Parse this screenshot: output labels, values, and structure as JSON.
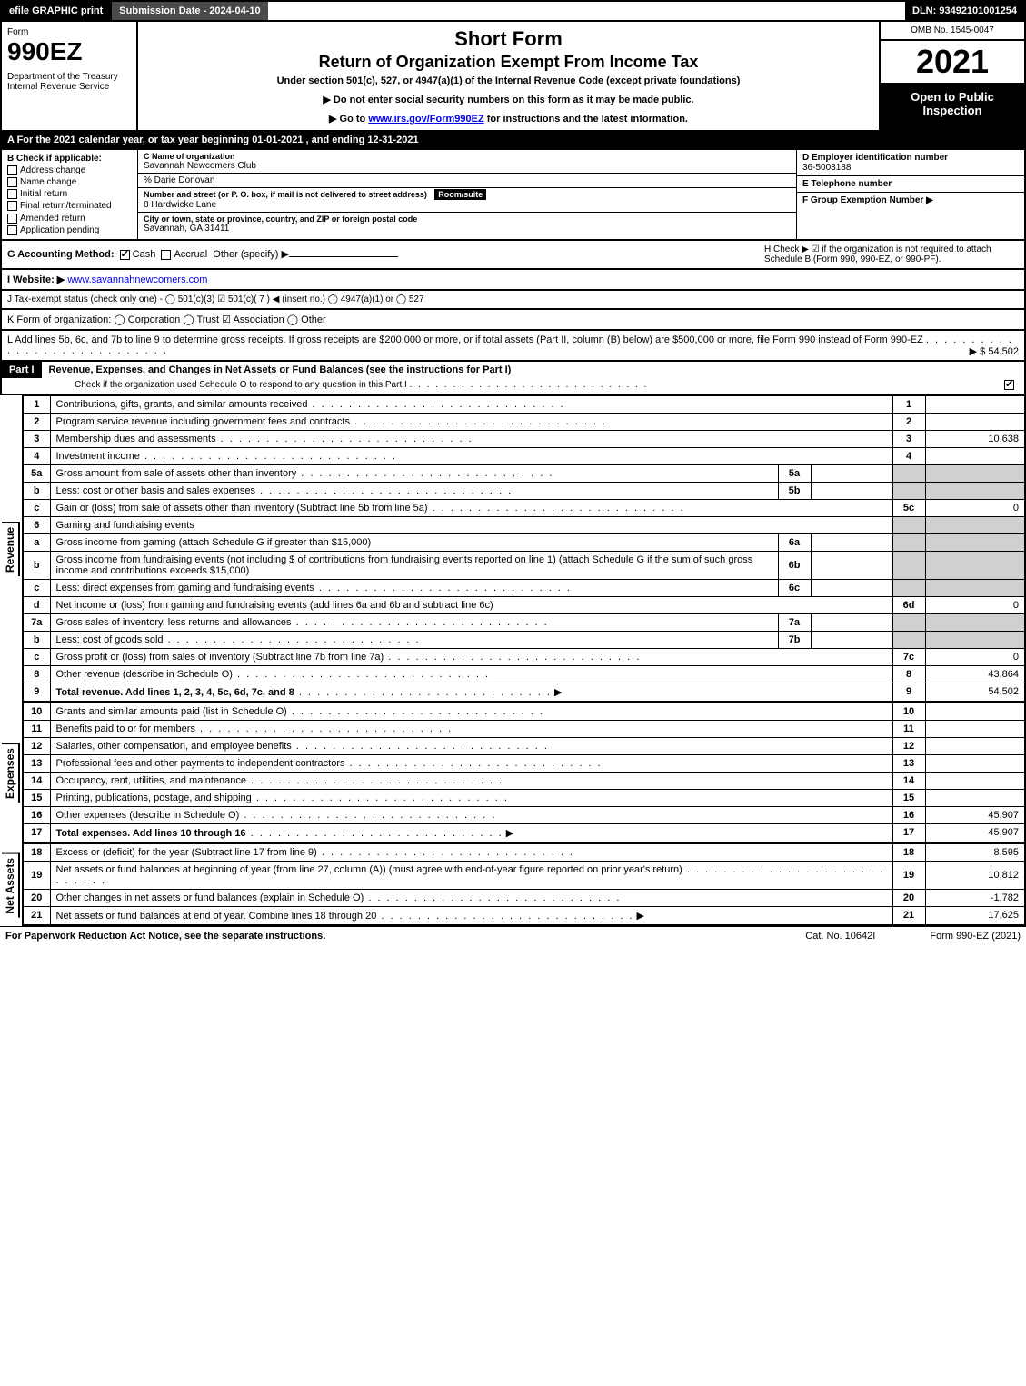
{
  "topbar": {
    "efile": "efile GRAPHIC print",
    "subdate_label": "Submission Date - 2024-04-10",
    "dln": "DLN: 93492101001254"
  },
  "header": {
    "form_word": "Form",
    "form_num": "990EZ",
    "dept": "Department of the Treasury\nInternal Revenue Service",
    "title1": "Short Form",
    "title2": "Return of Organization Exempt From Income Tax",
    "subtitle": "Under section 501(c), 527, or 4947(a)(1) of the Internal Revenue Code (except private foundations)",
    "note1": "▶ Do not enter social security numbers on this form as it may be made public.",
    "note2_pre": "▶ Go to ",
    "note2_link": "www.irs.gov/Form990EZ",
    "note2_post": " for instructions and the latest information.",
    "omb": "OMB No. 1545-0047",
    "year": "2021",
    "open": "Open to Public Inspection"
  },
  "rowA": "A  For the 2021 calendar year, or tax year beginning 01-01-2021 , and ending 12-31-2021",
  "B": {
    "hdr": "B  Check if applicable:",
    "opts": [
      "Address change",
      "Name change",
      "Initial return",
      "Final return/terminated",
      "Amended return",
      "Application pending"
    ]
  },
  "C": {
    "name_lbl": "C Name of organization",
    "name": "Savannah Newcomers Club",
    "care": "% Darie Donovan",
    "street_lbl": "Number and street (or P. O. box, if mail is not delivered to street address)",
    "room_lbl": "Room/suite",
    "street": "8 Hardwicke Lane",
    "city_lbl": "City or town, state or province, country, and ZIP or foreign postal code",
    "city": "Savannah, GA  31411"
  },
  "D": {
    "ein_lbl": "D Employer identification number",
    "ein": "36-5003188",
    "tel_lbl": "E Telephone number",
    "tel": "",
    "grp_lbl": "F Group Exemption Number  ▶",
    "grp": ""
  },
  "G": {
    "lbl": "G Accounting Method:",
    "cash": "Cash",
    "accrual": "Accrual",
    "other": "Other (specify) ▶"
  },
  "H": {
    "text": "H  Check ▶  ☑  if the organization is not required to attach Schedule B (Form 990, 990-EZ, or 990-PF)."
  },
  "I": {
    "lbl": "I Website: ▶",
    "val": "www.savannahnewcomers.com"
  },
  "J": {
    "text": "J Tax-exempt status (check only one) -  ◯ 501(c)(3)  ☑ 501(c)( 7 ) ◀ (insert no.)  ◯ 4947(a)(1) or  ◯ 527"
  },
  "K": {
    "text": "K Form of organization:   ◯ Corporation   ◯ Trust   ☑ Association   ◯ Other"
  },
  "L": {
    "text": "L Add lines 5b, 6c, and 7b to line 9 to determine gross receipts. If gross receipts are $200,000 or more, or if total assets (Part II, column (B) below) are $500,000 or more, file Form 990 instead of Form 990-EZ",
    "amt": "▶ $ 54,502"
  },
  "partI": {
    "bar": "Part I",
    "title": "Revenue, Expenses, and Changes in Net Assets or Fund Balances (see the instructions for Part I)",
    "sub": "Check if the organization used Schedule O to respond to any question in this Part I",
    "sub_checked": true
  },
  "sections": {
    "revenue": "Revenue",
    "expenses": "Expenses",
    "netassets": "Net Assets"
  },
  "lines": {
    "l1": {
      "n": "1",
      "t": "Contributions, gifts, grants, and similar amounts received",
      "r": "1",
      "a": ""
    },
    "l2": {
      "n": "2",
      "t": "Program service revenue including government fees and contracts",
      "r": "2",
      "a": ""
    },
    "l3": {
      "n": "3",
      "t": "Membership dues and assessments",
      "r": "3",
      "a": "10,638"
    },
    "l4": {
      "n": "4",
      "t": "Investment income",
      "r": "4",
      "a": ""
    },
    "l5a": {
      "n": "5a",
      "t": "Gross amount from sale of assets other than inventory",
      "s": "5a",
      "sv": ""
    },
    "l5b": {
      "n": "b",
      "t": "Less: cost or other basis and sales expenses",
      "s": "5b",
      "sv": ""
    },
    "l5c": {
      "n": "c",
      "t": "Gain or (loss) from sale of assets other than inventory (Subtract line 5b from line 5a)",
      "r": "5c",
      "a": "0"
    },
    "l6": {
      "n": "6",
      "t": "Gaming and fundraising events"
    },
    "l6a": {
      "n": "a",
      "t": "Gross income from gaming (attach Schedule G if greater than $15,000)",
      "s": "6a",
      "sv": ""
    },
    "l6b": {
      "n": "b",
      "t": "Gross income from fundraising events (not including $                      of contributions from fundraising events reported on line 1) (attach Schedule G if the sum of such gross income and contributions exceeds $15,000)",
      "s": "6b",
      "sv": ""
    },
    "l6c": {
      "n": "c",
      "t": "Less: direct expenses from gaming and fundraising events",
      "s": "6c",
      "sv": ""
    },
    "l6d": {
      "n": "d",
      "t": "Net income or (loss) from gaming and fundraising events (add lines 6a and 6b and subtract line 6c)",
      "r": "6d",
      "a": "0"
    },
    "l7a": {
      "n": "7a",
      "t": "Gross sales of inventory, less returns and allowances",
      "s": "7a",
      "sv": ""
    },
    "l7b": {
      "n": "b",
      "t": "Less: cost of goods sold",
      "s": "7b",
      "sv": ""
    },
    "l7c": {
      "n": "c",
      "t": "Gross profit or (loss) from sales of inventory (Subtract line 7b from line 7a)",
      "r": "7c",
      "a": "0"
    },
    "l8": {
      "n": "8",
      "t": "Other revenue (describe in Schedule O)",
      "r": "8",
      "a": "43,864"
    },
    "l9": {
      "n": "9",
      "t": "Total revenue. Add lines 1, 2, 3, 4, 5c, 6d, 7c, and 8",
      "r": "9",
      "a": "54,502",
      "bold": true,
      "arrow": true
    },
    "l10": {
      "n": "10",
      "t": "Grants and similar amounts paid (list in Schedule O)",
      "r": "10",
      "a": ""
    },
    "l11": {
      "n": "11",
      "t": "Benefits paid to or for members",
      "r": "11",
      "a": ""
    },
    "l12": {
      "n": "12",
      "t": "Salaries, other compensation, and employee benefits",
      "r": "12",
      "a": ""
    },
    "l13": {
      "n": "13",
      "t": "Professional fees and other payments to independent contractors",
      "r": "13",
      "a": ""
    },
    "l14": {
      "n": "14",
      "t": "Occupancy, rent, utilities, and maintenance",
      "r": "14",
      "a": ""
    },
    "l15": {
      "n": "15",
      "t": "Printing, publications, postage, and shipping",
      "r": "15",
      "a": ""
    },
    "l16": {
      "n": "16",
      "t": "Other expenses (describe in Schedule O)",
      "r": "16",
      "a": "45,907"
    },
    "l17": {
      "n": "17",
      "t": "Total expenses. Add lines 10 through 16",
      "r": "17",
      "a": "45,907",
      "bold": true,
      "arrow": true
    },
    "l18": {
      "n": "18",
      "t": "Excess or (deficit) for the year (Subtract line 17 from line 9)",
      "r": "18",
      "a": "8,595"
    },
    "l19": {
      "n": "19",
      "t": "Net assets or fund balances at beginning of year (from line 27, column (A)) (must agree with end-of-year figure reported on prior year's return)",
      "r": "19",
      "a": "10,812"
    },
    "l20": {
      "n": "20",
      "t": "Other changes in net assets or fund balances (explain in Schedule O)",
      "r": "20",
      "a": "-1,782"
    },
    "l21": {
      "n": "21",
      "t": "Net assets or fund balances at end of year. Combine lines 18 through 20",
      "r": "21",
      "a": "17,625",
      "arrow": true
    }
  },
  "footer": {
    "l": "For Paperwork Reduction Act Notice, see the separate instructions.",
    "m": "Cat. No. 10642I",
    "r": "Form 990-EZ (2021)"
  },
  "colors": {
    "black": "#000000",
    "darkgray": "#4a4a4a",
    "shade": "#d0d0d0",
    "link": "#0000ee"
  }
}
